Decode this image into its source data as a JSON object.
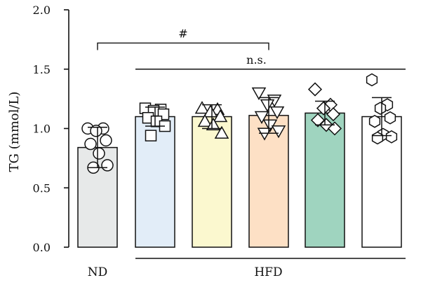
{
  "chart_data": {
    "type": "bar",
    "title": "",
    "ylabel": "TG (mmol/L)",
    "xlabel": "",
    "ylim": [
      0,
      2.0
    ],
    "yticks": [
      "0.0",
      "0.5",
      "1.0",
      "1.5",
      "2.0"
    ],
    "grid": false,
    "bars": [
      {
        "label": "ND",
        "value": 0.84,
        "sd": 0.17,
        "fill": "#e7e9e9",
        "marker": "circle",
        "points": [
          1.0,
          1.0,
          0.98,
          0.9,
          0.87,
          0.79,
          0.69,
          0.67
        ]
      },
      {
        "label": "",
        "value": 1.1,
        "sd": 0.08,
        "fill": "#e2edf8",
        "marker": "square",
        "points": [
          1.17,
          1.16,
          1.15,
          1.12,
          1.09,
          1.06,
          1.02,
          0.94
        ]
      },
      {
        "label": "",
        "value": 1.1,
        "sd": 0.1,
        "fill": "#fbf8cf",
        "marker": "triangle-up",
        "points": [
          1.17,
          1.16,
          1.14,
          1.1,
          1.06,
          1.03,
          0.96
        ]
      },
      {
        "label": "",
        "value": 1.11,
        "sd": 0.15,
        "fill": "#fde0c5",
        "marker": "triangle-down",
        "points": [
          1.3,
          1.24,
          1.2,
          1.14,
          1.1,
          1.03,
          0.98,
          0.96
        ]
      },
      {
        "label": "",
        "value": 1.13,
        "sd": 0.1,
        "fill": "#9fd4bf",
        "marker": "diamond",
        "points": [
          1.33,
          1.2,
          1.17,
          1.12,
          1.07,
          1.03,
          1.0
        ]
      },
      {
        "label": "",
        "value": 1.1,
        "sd": 0.16,
        "fill": "#ffffff",
        "marker": "hexagon",
        "points": [
          1.41,
          1.2,
          1.17,
          1.09,
          1.06,
          0.95,
          0.93,
          0.92
        ]
      }
    ],
    "group_label": "HFD",
    "annotations": [
      {
        "text": "#",
        "from_bar": 0,
        "to_bar": 3,
        "y": 1.72
      },
      {
        "text": "n.s.",
        "from_bar": 1,
        "to_bar": 5,
        "y": 1.5
      }
    ]
  }
}
